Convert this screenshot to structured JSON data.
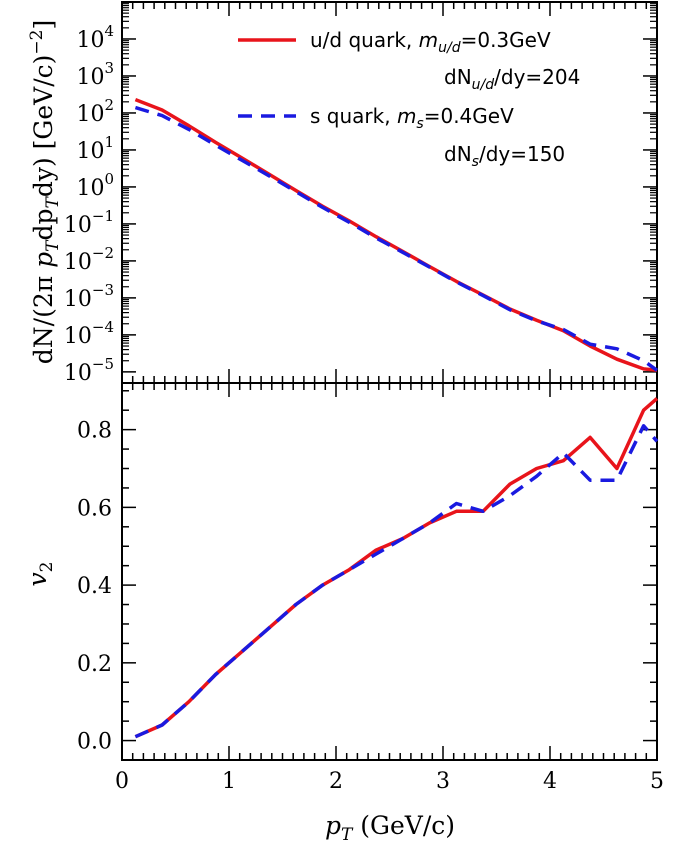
{
  "chart_data": [
    {
      "type": "line",
      "panel": "top",
      "xlabel": "",
      "ylabel": "dN/(2π p_T dp_T dy) [GeV/c)^-2]",
      "ylabel_parts": {
        "main": "dN/(2π ",
        "pt": "p",
        "sub_t": "T",
        "dp": "dp",
        "sub_t2": "T",
        "end": "dy) [GeV/c)",
        "sup": "−2",
        "close": "]"
      },
      "xlim": [
        0,
        5
      ],
      "ylim": [
        5e-06,
        100000
      ],
      "yscale": "log",
      "y_ticks": [
        {
          "value": 1e-05,
          "base": "10",
          "exp": "−5"
        },
        {
          "value": 0.0001,
          "base": "10",
          "exp": "−4"
        },
        {
          "value": 0.001,
          "base": "10",
          "exp": "−3"
        },
        {
          "value": 0.01,
          "base": "10",
          "exp": "−2"
        },
        {
          "value": 0.1,
          "base": "10",
          "exp": "−1"
        },
        {
          "value": 1,
          "base": "10",
          "exp": "0"
        },
        {
          "value": 10,
          "base": "10",
          "exp": "1"
        },
        {
          "value": 100,
          "base": "10",
          "exp": "2"
        },
        {
          "value": 1000,
          "base": "10",
          "exp": "3"
        },
        {
          "value": 10000,
          "base": "10",
          "exp": "4"
        }
      ],
      "series": [
        {
          "name": "u/d quark",
          "color": "#e8141b",
          "style": "solid",
          "x": [
            0.125,
            0.375,
            0.625,
            0.875,
            1.125,
            1.375,
            1.625,
            1.875,
            2.125,
            2.375,
            2.625,
            2.875,
            3.125,
            3.375,
            3.625,
            3.875,
            4.125,
            4.375,
            4.625,
            4.875,
            5.0
          ],
          "y": [
            230,
            120,
            45,
            16,
            6,
            2.2,
            0.8,
            0.3,
            0.12,
            0.045,
            0.018,
            0.007,
            0.0028,
            0.0012,
            0.0005,
            0.00025,
            0.00013,
            5e-05,
            2.2e-05,
            1.2e-05,
            1.1e-05
          ]
        },
        {
          "name": "s quark",
          "color": "#1a1ae0",
          "style": "dashed",
          "x": [
            0.125,
            0.375,
            0.625,
            0.875,
            1.125,
            1.375,
            1.625,
            1.875,
            2.125,
            2.375,
            2.625,
            2.875,
            3.125,
            3.375,
            3.625,
            3.875,
            4.125,
            4.375,
            4.625,
            4.875,
            5.0
          ],
          "y": [
            140,
            85,
            36,
            13.5,
            5.2,
            2.0,
            0.75,
            0.28,
            0.11,
            0.042,
            0.017,
            0.0068,
            0.0027,
            0.00115,
            0.00048,
            0.00024,
            0.00014,
            5.6e-05,
            4.2e-05,
            2e-05,
            1.1e-05
          ]
        }
      ],
      "legend": {
        "placement": "top-right",
        "entries": [
          {
            "label_plain": "u/d quark, ",
            "label_mass_sym": "m",
            "label_mass_sub": "u/d",
            "label_mass_val": "=0.3GeV",
            "dn_prefix": "dN",
            "dn_sub": "u/d",
            "dn_suffix": "/dy=204"
          },
          {
            "label_plain": "s quark, ",
            "label_mass_sym": "m",
            "label_mass_sub": "s",
            "label_mass_val": "=0.4GeV",
            "dn_prefix": "dN",
            "dn_sub": "s",
            "dn_suffix": "/dy=150"
          }
        ]
      }
    },
    {
      "type": "line",
      "panel": "bottom",
      "xlabel_sym": "p",
      "xlabel_sub": "T",
      "xlabel_unit": " (GeV/c)",
      "ylabel_sym": "v",
      "ylabel_sub": "2",
      "xlim": [
        0,
        5
      ],
      "ylim": [
        -0.05,
        0.92
      ],
      "x_ticks": [
        "0",
        "1",
        "2",
        "3",
        "4",
        "5"
      ],
      "y_ticks": [
        "0.0",
        "0.2",
        "0.4",
        "0.6",
        "0.8"
      ],
      "series": [
        {
          "name": "u/d quark",
          "color": "#e8141b",
          "style": "solid",
          "x": [
            0.125,
            0.375,
            0.625,
            0.875,
            1.125,
            1.375,
            1.625,
            1.875,
            2.125,
            2.375,
            2.625,
            2.875,
            3.125,
            3.375,
            3.625,
            3.875,
            4.125,
            4.375,
            4.625,
            4.875,
            5.0
          ],
          "y": [
            0.01,
            0.04,
            0.1,
            0.17,
            0.23,
            0.29,
            0.35,
            0.4,
            0.44,
            0.49,
            0.52,
            0.56,
            0.59,
            0.59,
            0.66,
            0.7,
            0.72,
            0.78,
            0.7,
            0.85,
            0.88
          ]
        },
        {
          "name": "s quark",
          "color": "#1a1ae0",
          "style": "dashed",
          "x": [
            0.125,
            0.375,
            0.625,
            0.875,
            1.125,
            1.375,
            1.625,
            1.875,
            2.125,
            2.375,
            2.625,
            2.875,
            3.125,
            3.375,
            3.625,
            3.875,
            4.125,
            4.375,
            4.625,
            4.875,
            5.0
          ],
          "y": [
            0.01,
            0.04,
            0.1,
            0.17,
            0.23,
            0.29,
            0.35,
            0.4,
            0.44,
            0.48,
            0.52,
            0.56,
            0.61,
            0.59,
            0.63,
            0.68,
            0.74,
            0.67,
            0.67,
            0.81,
            0.77
          ]
        }
      ]
    }
  ]
}
